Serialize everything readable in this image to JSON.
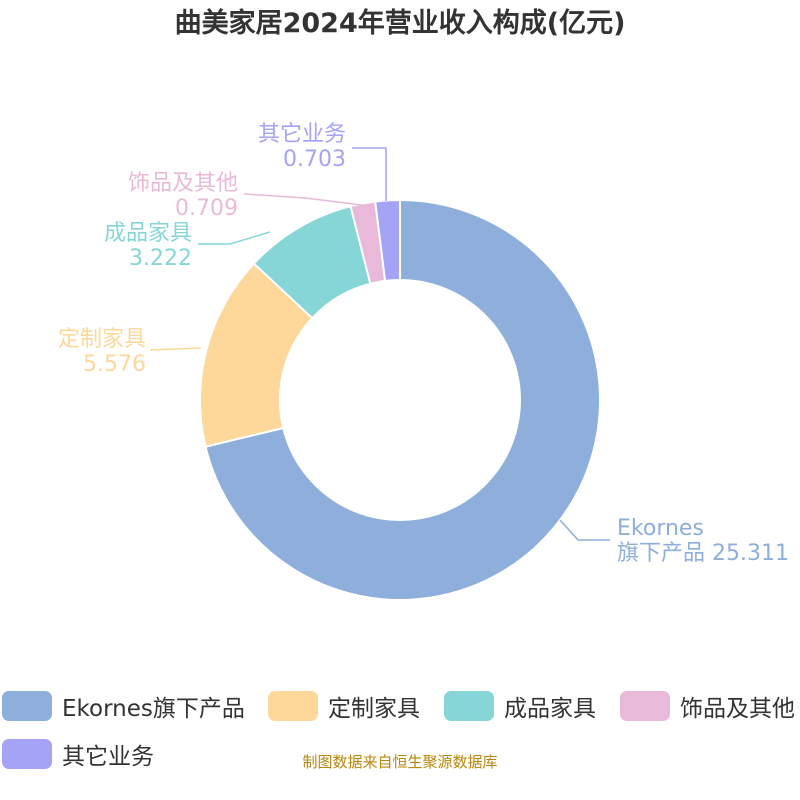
{
  "title": "曲美家居2024年营业收入构成(亿元)",
  "source": "制图数据来自恒生聚源数据库",
  "chart_data": {
    "type": "pie",
    "variant": "donut",
    "title": "曲美家居2024年营业收入构成(亿元)",
    "legend_position": "bottom",
    "slices": [
      {
        "label": "Ekornes旗下产品",
        "label_lines": [
          "Ekornes",
          "旗下产品 25.311"
        ],
        "value": 25.311,
        "color": "#8eaedb"
      },
      {
        "label": "定制家具",
        "label_lines": [
          "定制家具",
          "5.576"
        ],
        "value": 5.576,
        "color": "#fdd89a"
      },
      {
        "label": "成品家具",
        "label_lines": [
          "成品家具",
          "3.222"
        ],
        "value": 3.222,
        "color": "#86d6d8"
      },
      {
        "label": "饰品及其他",
        "label_lines": [
          "饰品及其他",
          "0.709"
        ],
        "value": 0.709,
        "color": "#e8b9d8"
      },
      {
        "label": "其它业务",
        "label_lines": [
          "其它业务",
          "0.703"
        ],
        "value": 0.703,
        "color": "#a4a3f5"
      }
    ]
  }
}
